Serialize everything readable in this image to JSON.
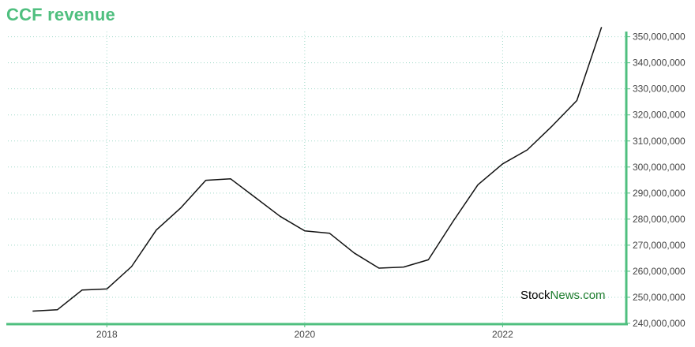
{
  "page": {
    "title": "CCF revenue"
  },
  "watermark": {
    "part1": "Stock",
    "part2": "News",
    "part3": ".com"
  },
  "colors": {
    "accent": "#4fbf7f",
    "line": "#111111",
    "grid": "#9fd8c8",
    "watermark_green": "#1e7d2e"
  },
  "chart_data": {
    "type": "line",
    "title": "CCF revenue",
    "xlabel": "",
    "ylabel": "",
    "x_ticks": [
      "2018",
      "2020",
      "2022"
    ],
    "y_ticks": [
      240000000,
      250000000,
      260000000,
      270000000,
      280000000,
      290000000,
      300000000,
      310000000,
      320000000,
      330000000,
      340000000,
      350000000
    ],
    "y_tick_labels": [
      "240,000,000",
      "250,000,000",
      "260,000,000",
      "270,000,000",
      "280,000,000",
      "290,000,000",
      "300,000,000",
      "310,000,000",
      "320,000,000",
      "330,000,000",
      "340,000,000",
      "350,000,000"
    ],
    "xlim": [
      2017.0,
      2023.25
    ],
    "ylim": [
      240000000,
      352000000
    ],
    "grid": true,
    "y_axis_position": "right",
    "series": [
      {
        "x": [
          2017.25,
          2017.5,
          2017.75,
          2018.0,
          2018.25,
          2018.5,
          2018.75,
          2019.0,
          2019.25,
          2019.5,
          2019.75,
          2020.0,
          2020.25,
          2020.5,
          2020.75,
          2021.0,
          2021.25,
          2021.5,
          2021.75,
          2022.0,
          2022.25,
          2022.5,
          2022.75,
          2023.0
        ],
        "values": [
          244700000,
          245200000,
          252800000,
          253200000,
          261800000,
          275800000,
          284400000,
          294900000,
          295500000,
          288300000,
          281100000,
          275500000,
          274600000,
          267000000,
          261200000,
          261600000,
          264400000,
          279200000,
          293200000,
          301200000,
          306600000,
          315700000,
          325500000,
          353700000
        ]
      }
    ]
  }
}
